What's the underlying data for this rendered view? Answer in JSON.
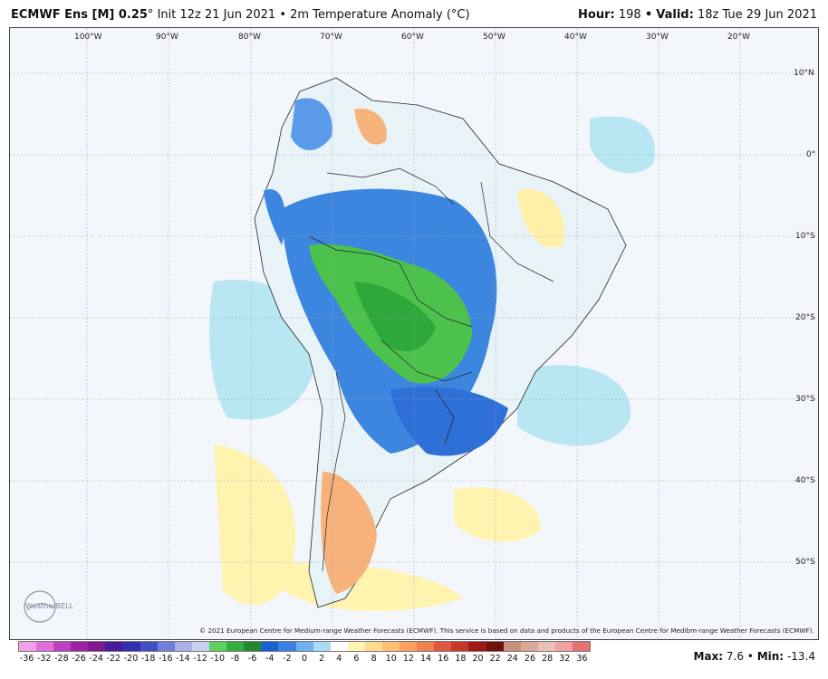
{
  "header": {
    "model": "ECMWF Ens [M] 0.25",
    "degree": "°",
    "init": "Init 12z 21 Jun 2021",
    "sep": "•",
    "field": "2m Temperature Anomaly (°C)",
    "hour_label": "Hour:",
    "hour": "198",
    "valid_label": "Valid:",
    "valid": "18z Tue 29 Jun 2021"
  },
  "map": {
    "longitudes": [
      "100°W",
      "90°W",
      "80°W",
      "70°W",
      "60°W",
      "50°W",
      "40°W",
      "30°W",
      "20°W"
    ],
    "latitudes": [
      "10°N",
      "0°",
      "10°S",
      "20°S",
      "30°S",
      "40°S",
      "50°S"
    ],
    "region": "South America"
  },
  "credit": "© 2021 European Centre for Medium-range Weather Forecasts (ECMWF). This service is based on data and products of the European Centre for Medibm-range Weather Forecasts (ECMWF).",
  "logo": "WeatherBELL",
  "colorbar": {
    "ticks": [
      "-36",
      "-32",
      "-28",
      "-26",
      "-24",
      "-22",
      "-20",
      "-18",
      "-16",
      "-14",
      "-12",
      "-10",
      "-8",
      "-6",
      "-4",
      "-2",
      "0",
      "2",
      "4",
      "6",
      "8",
      "10",
      "12",
      "14",
      "16",
      "18",
      "20",
      "22",
      "24",
      "26",
      "28",
      "32",
      "36"
    ],
    "colors": [
      "#f0a0e8",
      "#e070d8",
      "#c040c0",
      "#a020a8",
      "#801890",
      "#4a1a9a",
      "#3030b0",
      "#4050c8",
      "#7080d8",
      "#a8b0e8",
      "#c8cff0",
      "#60d060",
      "#30b040",
      "#208830",
      "#1a60d0",
      "#3a80e0",
      "#70b0f0",
      "#a8dcf4",
      "#ffffff",
      "#fff4b0",
      "#ffdc90",
      "#ffc070",
      "#ffa060",
      "#f08050",
      "#e05840",
      "#c83828",
      "#a01818",
      "#701010",
      "#c89078",
      "#d8a898",
      "#e8c0b8",
      "#f0a0a0",
      "#e87070"
    ]
  },
  "stats": {
    "max_label": "Max:",
    "max": "7.6",
    "min_label": "Min:",
    "min": "-13.4",
    "sep": "•"
  }
}
